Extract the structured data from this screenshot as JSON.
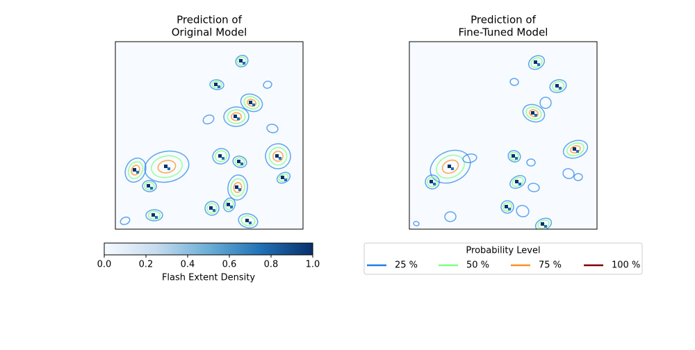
{
  "chart_data": [
    {
      "type": "contour",
      "title": [
        "Prediction of",
        "Original Model"
      ]
    },
    {
      "type": "contour",
      "title": [
        "Prediction of",
        "Fine-Tuned Model"
      ]
    }
  ],
  "colorbar": {
    "label": "Flash Extent Density",
    "xlim": [
      0,
      1
    ],
    "xticks": [
      {
        "value": 0,
        "label": "0.0"
      },
      {
        "value": 0.2,
        "label": "0.2"
      },
      {
        "value": 0.4,
        "label": "0.4"
      },
      {
        "value": 0.6,
        "label": "0.6"
      },
      {
        "value": 0.8,
        "label": "0.8"
      },
      {
        "value": 1,
        "label": "1.0"
      }
    ],
    "colors": [
      "#f7fbff",
      "#c6dbef",
      "#6baed6",
      "#2171b5",
      "#08306b"
    ]
  },
  "legend": {
    "title": "Probability Level",
    "series": [
      {
        "name": "25 %",
        "color": "#1f7fe8"
      },
      {
        "name": "50 %",
        "color": "#80ff80"
      },
      {
        "name": "75 %",
        "color": "#ff9020"
      },
      {
        "name": "100 %",
        "color": "#800000"
      }
    ]
  }
}
